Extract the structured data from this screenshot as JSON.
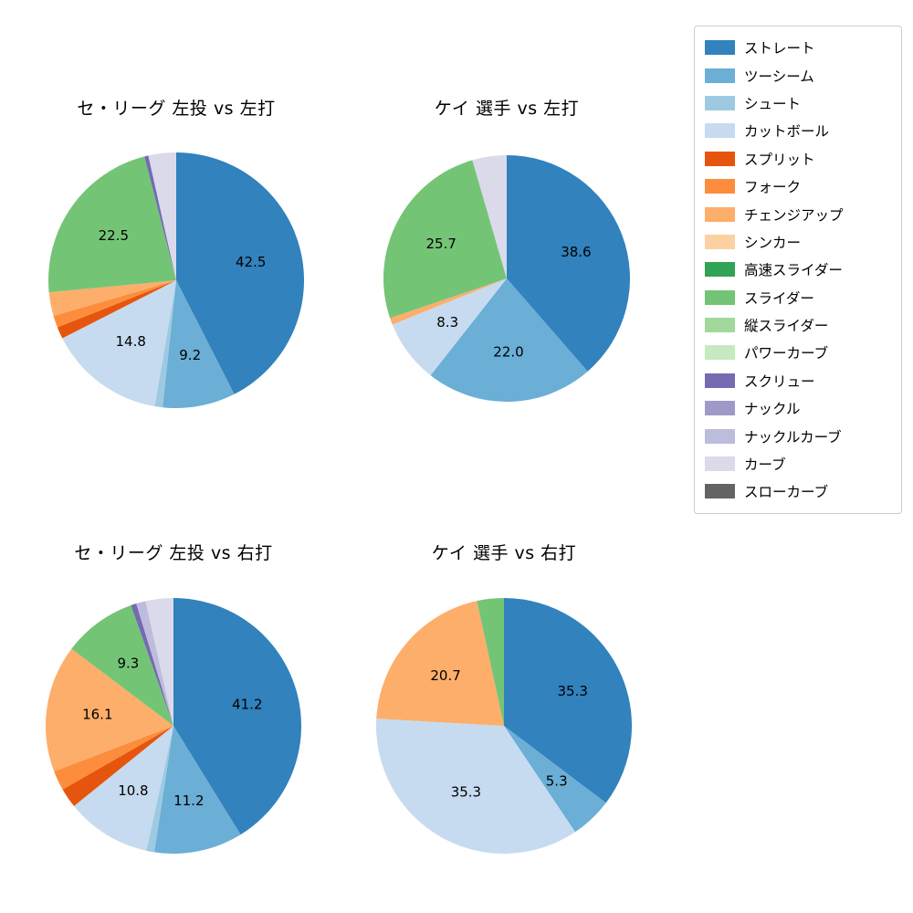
{
  "figure": {
    "background": "#ffffff",
    "label_min_percent_for_text": 5
  },
  "legend": {
    "items": [
      {
        "label": "ストレート",
        "color": "#3182bd"
      },
      {
        "label": "ツーシーム",
        "color": "#6baed6"
      },
      {
        "label": "シュート",
        "color": "#9ecae1"
      },
      {
        "label": "カットボール",
        "color": "#c6dbef"
      },
      {
        "label": "スプリット",
        "color": "#e6550d"
      },
      {
        "label": "フォーク",
        "color": "#fd8d3c"
      },
      {
        "label": "チェンジアップ",
        "color": "#fdae6b"
      },
      {
        "label": "シンカー",
        "color": "#fdd0a2"
      },
      {
        "label": "高速スライダー",
        "color": "#31a354"
      },
      {
        "label": "スライダー",
        "color": "#74c476"
      },
      {
        "label": "縦スライダー",
        "color": "#a1d99b"
      },
      {
        "label": "パワーカーブ",
        "color": "#c7e9c0"
      },
      {
        "label": "スクリュー",
        "color": "#756bb1"
      },
      {
        "label": "ナックル",
        "color": "#9e9ac8"
      },
      {
        "label": "ナックルカーブ",
        "color": "#bcbddc"
      },
      {
        "label": "カーブ",
        "color": "#dadaeb"
      },
      {
        "label": "スローカーブ",
        "color": "#636363"
      }
    ]
  },
  "chart_data": [
    {
      "type": "pie",
      "title": "セ・リーグ 左投 vs 左打",
      "start_angle": "top",
      "direction": "clockwise",
      "slices": [
        {
          "name": "ストレート",
          "value": 42.5
        },
        {
          "name": "ツーシーム",
          "value": 9.2
        },
        {
          "name": "シュート",
          "value": 1.0
        },
        {
          "name": "カットボール",
          "value": 14.8
        },
        {
          "name": "スプリット",
          "value": 1.5
        },
        {
          "name": "フォーク",
          "value": 1.5
        },
        {
          "name": "チェンジアップ",
          "value": 3.0
        },
        {
          "name": "スライダー",
          "value": 22.5
        },
        {
          "name": "スクリュー",
          "value": 0.5
        },
        {
          "name": "カーブ",
          "value": 3.5
        }
      ]
    },
    {
      "type": "pie",
      "title": "ケイ 選手 vs 左打",
      "start_angle": "top",
      "direction": "clockwise",
      "slices": [
        {
          "name": "ストレート",
          "value": 38.6
        },
        {
          "name": "ツーシーム",
          "value": 22.0
        },
        {
          "name": "カットボール",
          "value": 8.3
        },
        {
          "name": "チェンジアップ",
          "value": 0.9
        },
        {
          "name": "スライダー",
          "value": 25.7
        },
        {
          "name": "カーブ",
          "value": 4.5
        }
      ]
    },
    {
      "type": "pie",
      "title": "セ・リーグ 左投 vs 右打",
      "start_angle": "top",
      "direction": "clockwise",
      "slices": [
        {
          "name": "ストレート",
          "value": 41.2
        },
        {
          "name": "ツーシーム",
          "value": 11.2
        },
        {
          "name": "シュート",
          "value": 1.0
        },
        {
          "name": "カットボール",
          "value": 10.8
        },
        {
          "name": "スプリット",
          "value": 2.5
        },
        {
          "name": "フォーク",
          "value": 2.5
        },
        {
          "name": "チェンジアップ",
          "value": 16.1
        },
        {
          "name": "スライダー",
          "value": 9.3
        },
        {
          "name": "スクリュー",
          "value": 0.7
        },
        {
          "name": "ナックルカーブ",
          "value": 1.2
        },
        {
          "name": "カーブ",
          "value": 3.5
        }
      ]
    },
    {
      "type": "pie",
      "title": "ケイ 選手 vs 右打",
      "start_angle": "top",
      "direction": "clockwise",
      "slices": [
        {
          "name": "ストレート",
          "value": 35.3
        },
        {
          "name": "ツーシーム",
          "value": 5.3
        },
        {
          "name": "カットボール",
          "value": 35.3
        },
        {
          "name": "チェンジアップ",
          "value": 20.7
        },
        {
          "name": "スライダー",
          "value": 3.4
        }
      ]
    }
  ]
}
